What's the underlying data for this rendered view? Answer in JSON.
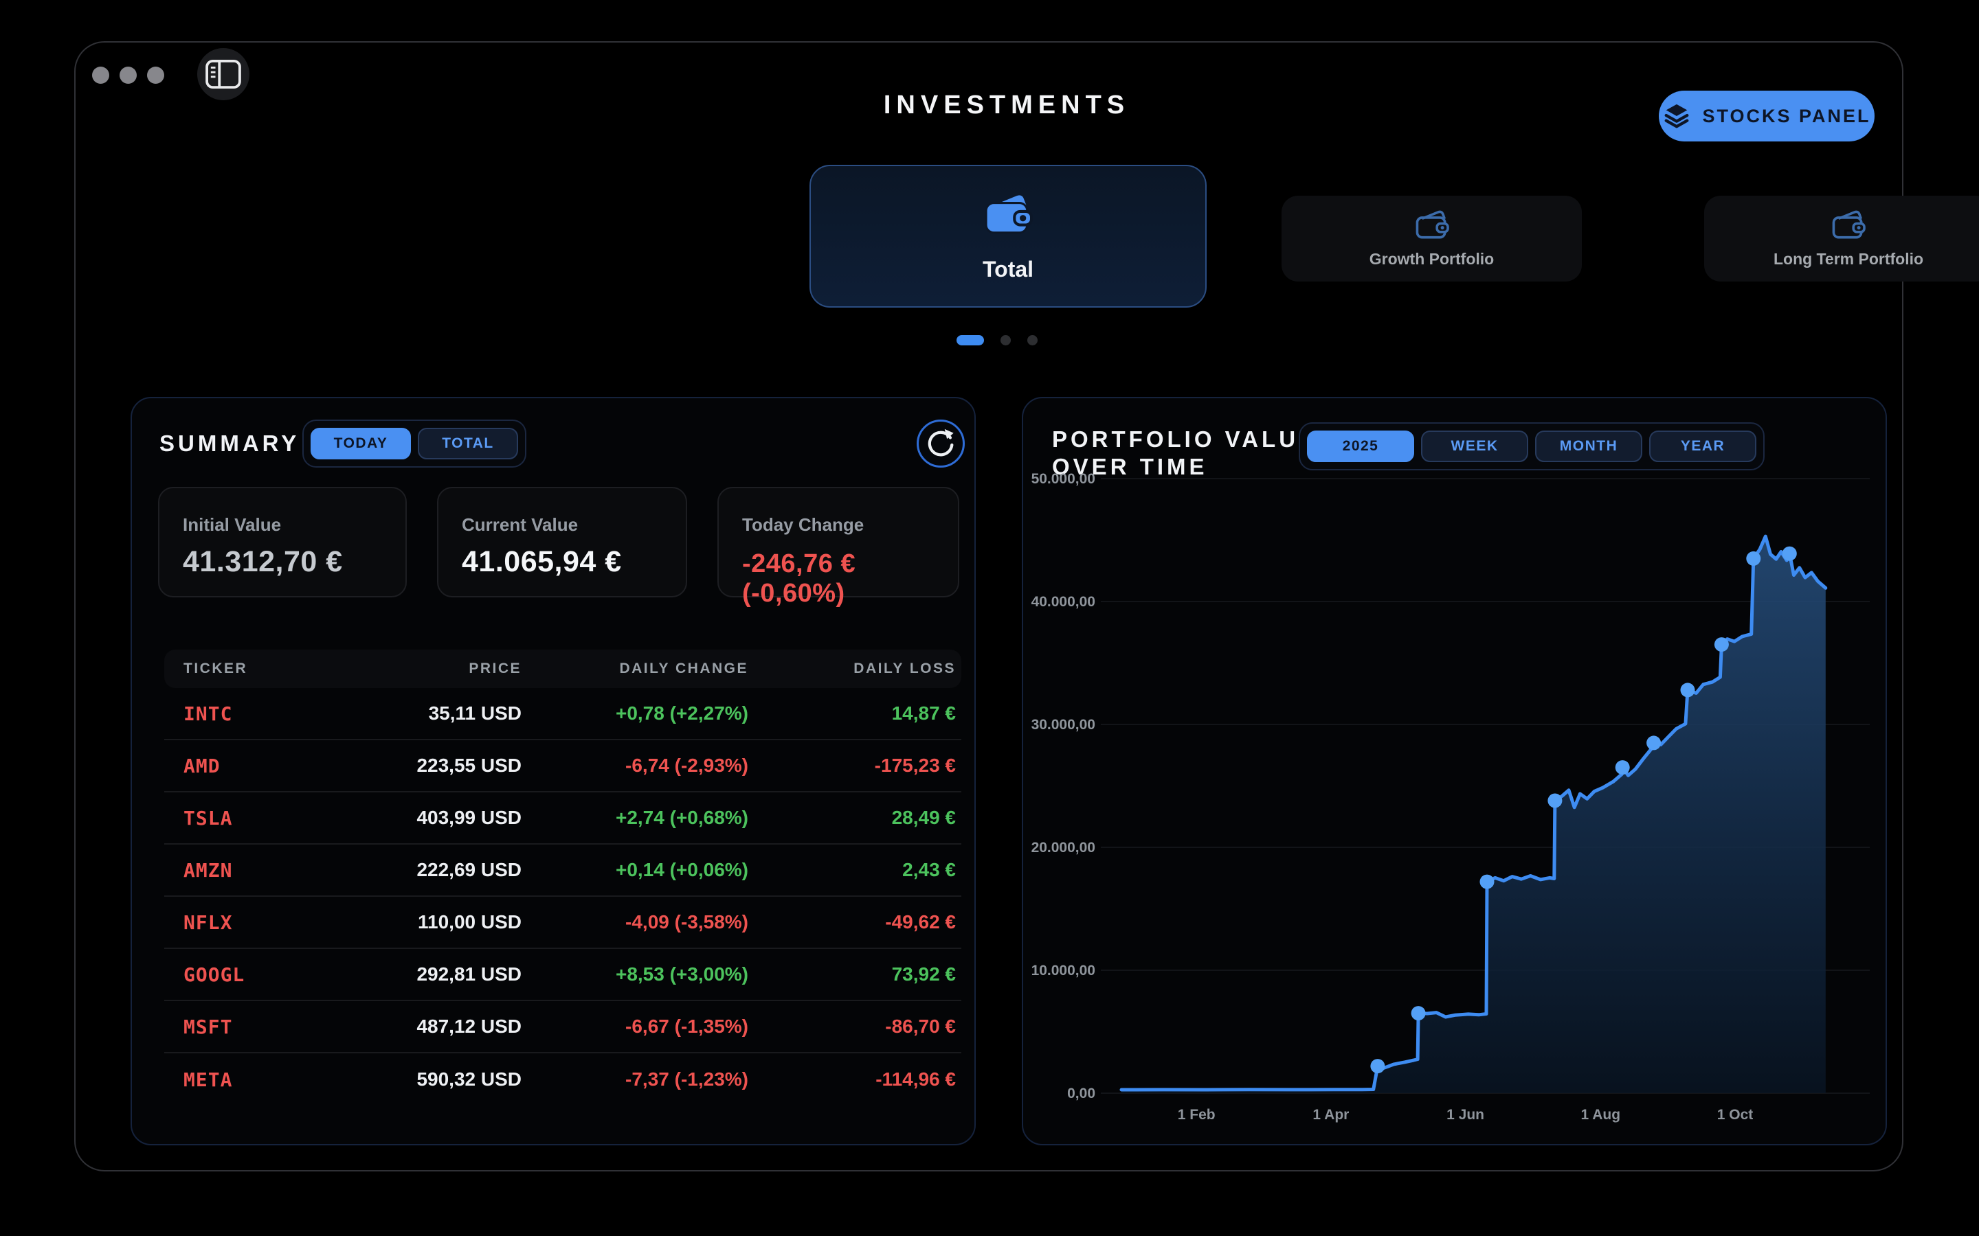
{
  "window": {
    "title": "INVESTMENTS",
    "stocks_panel_label": "STOCKS PANEL"
  },
  "icons": {
    "sidebar": "sidebar-toggle-icon",
    "stocks_panel": "layers-icon",
    "portfolio": "wallet-icon",
    "refresh": "refresh-icon"
  },
  "colors": {
    "accent": "#4a90f2",
    "line": "#3e8cf2",
    "positive": "#4cc35d",
    "negative": "#ef5350",
    "panel_border": "#15223c"
  },
  "portfolios": {
    "selected": {
      "label": "Total"
    },
    "others": [
      {
        "label": "Growth Portfolio"
      },
      {
        "label": "Long Term Portfolio"
      }
    ],
    "pagination": {
      "count": 3,
      "active": 0
    }
  },
  "summary": {
    "title": "SUMMARY",
    "tabs": [
      {
        "label": "TODAY",
        "active": true
      },
      {
        "label": "TOTAL",
        "active": false
      }
    ],
    "cards": [
      {
        "label": "Initial Value",
        "value": "41.312,70 €"
      },
      {
        "label": "Current Value",
        "value": "41.065,94 €"
      },
      {
        "label": "Today Change",
        "value": "-246,76 € (-0,60%)"
      }
    ],
    "table": {
      "headers": [
        "TICKER",
        "PRICE",
        "DAILY CHANGE",
        "DAILY LOSS"
      ],
      "rows": [
        {
          "ticker": "INTC",
          "price": "35,11 USD",
          "change": "+0,78 (+2,27%)",
          "change_dir": "up",
          "loss": "14,87 €",
          "loss_dir": "up"
        },
        {
          "ticker": "AMD",
          "price": "223,55 USD",
          "change": "-6,74 (-2,93%)",
          "change_dir": "down",
          "loss": "-175,23 €",
          "loss_dir": "down"
        },
        {
          "ticker": "TSLA",
          "price": "403,99 USD",
          "change": "+2,74 (+0,68%)",
          "change_dir": "up",
          "loss": "28,49 €",
          "loss_dir": "up"
        },
        {
          "ticker": "AMZN",
          "price": "222,69 USD",
          "change": "+0,14 (+0,06%)",
          "change_dir": "up",
          "loss": "2,43 €",
          "loss_dir": "up"
        },
        {
          "ticker": "NFLX",
          "price": "110,00 USD",
          "change": "-4,09 (-3,58%)",
          "change_dir": "down",
          "loss": "-49,62 €",
          "loss_dir": "down"
        },
        {
          "ticker": "GOOGL",
          "price": "292,81 USD",
          "change": "+8,53 (+3,00%)",
          "change_dir": "up",
          "loss": "73,92 €",
          "loss_dir": "up"
        },
        {
          "ticker": "MSFT",
          "price": "487,12 USD",
          "change": "-6,67 (-1,35%)",
          "change_dir": "down",
          "loss": "-86,70 €",
          "loss_dir": "down"
        },
        {
          "ticker": "META",
          "price": "590,32 USD",
          "change": "-7,37 (-1,23%)",
          "change_dir": "down",
          "loss": "-114,96 €",
          "loss_dir": "down"
        }
      ]
    }
  },
  "chart": {
    "title_line1": "PORTFOLIO VALUE",
    "title_line2": "OVER TIME",
    "tabs": [
      {
        "label": "2025",
        "active": true
      },
      {
        "label": "WEEK",
        "active": false
      },
      {
        "label": "MONTH",
        "active": false
      },
      {
        "label": "YEAR",
        "active": false
      }
    ]
  },
  "chart_data": {
    "type": "line",
    "title": "PORTFOLIO VALUE OVER TIME",
    "xlabel": "",
    "ylabel": "",
    "ylim": [
      0,
      50000
    ],
    "grid": true,
    "legend": false,
    "y_ticks": [
      {
        "label": "50.000,00",
        "value": 50000
      },
      {
        "label": "40.000,00",
        "value": 40000
      },
      {
        "label": "30.000,00",
        "value": 30000
      },
      {
        "label": "20.000,00",
        "value": 20000
      },
      {
        "label": "10.000,00",
        "value": 10000
      },
      {
        "label": "0,00",
        "value": 0
      }
    ],
    "x_ticks": [
      {
        "label": "1 Feb",
        "pos": 0.106
      },
      {
        "label": "1 Apr",
        "pos": 0.296
      },
      {
        "label": "1 Jun",
        "pos": 0.486
      },
      {
        "label": "1 Aug",
        "pos": 0.677
      },
      {
        "label": "1 Oct",
        "pos": 0.867
      }
    ],
    "points": [
      [
        0.0,
        280
      ],
      [
        0.06,
        285
      ],
      [
        0.12,
        280
      ],
      [
        0.18,
        292
      ],
      [
        0.24,
        286
      ],
      [
        0.3,
        292
      ],
      [
        0.34,
        295
      ],
      [
        0.356,
        305
      ],
      [
        0.362,
        2200
      ],
      [
        0.371,
        2050
      ],
      [
        0.385,
        2350
      ],
      [
        0.4,
        2520
      ],
      [
        0.413,
        2680
      ],
      [
        0.4185,
        2760
      ],
      [
        0.4195,
        6500
      ],
      [
        0.432,
        6480
      ],
      [
        0.445,
        6560
      ],
      [
        0.458,
        6200
      ],
      [
        0.472,
        6360
      ],
      [
        0.49,
        6430
      ],
      [
        0.505,
        6380
      ],
      [
        0.5155,
        6450
      ],
      [
        0.5165,
        17200
      ],
      [
        0.528,
        17520
      ],
      [
        0.54,
        17280
      ],
      [
        0.552,
        17620
      ],
      [
        0.565,
        17420
      ],
      [
        0.578,
        17680
      ],
      [
        0.592,
        17380
      ],
      [
        0.605,
        17520
      ],
      [
        0.6115,
        17460
      ],
      [
        0.6125,
        23800
      ],
      [
        0.622,
        24150
      ],
      [
        0.632,
        24650
      ],
      [
        0.64,
        23250
      ],
      [
        0.648,
        24350
      ],
      [
        0.658,
        23950
      ],
      [
        0.668,
        24550
      ],
      [
        0.68,
        24850
      ],
      [
        0.695,
        25350
      ],
      [
        0.707,
        25950
      ],
      [
        0.708,
        26500
      ],
      [
        0.716,
        25850
      ],
      [
        0.726,
        26350
      ],
      [
        0.738,
        27250
      ],
      [
        0.75,
        28100
      ],
      [
        0.752,
        28500
      ],
      [
        0.762,
        28350
      ],
      [
        0.772,
        28950
      ],
      [
        0.784,
        29650
      ],
      [
        0.797,
        30050
      ],
      [
        0.8,
        32800
      ],
      [
        0.812,
        32550
      ],
      [
        0.822,
        33250
      ],
      [
        0.835,
        33450
      ],
      [
        0.846,
        33850
      ],
      [
        0.848,
        36500
      ],
      [
        0.856,
        36950
      ],
      [
        0.866,
        36750
      ],
      [
        0.877,
        37150
      ],
      [
        0.89,
        37350
      ],
      [
        0.893,
        43500
      ],
      [
        0.902,
        44250
      ],
      [
        0.91,
        45300
      ],
      [
        0.917,
        43850
      ],
      [
        0.925,
        43450
      ],
      [
        0.932,
        44050
      ],
      [
        0.94,
        43350
      ],
      [
        0.944,
        43900
      ],
      [
        0.95,
        42150
      ],
      [
        0.958,
        42750
      ],
      [
        0.966,
        41950
      ],
      [
        0.975,
        42350
      ],
      [
        0.984,
        41650
      ],
      [
        0.995,
        41100
      ]
    ],
    "markers": [
      [
        0.362,
        2200
      ],
      [
        0.4195,
        6500
      ],
      [
        0.5165,
        17200
      ],
      [
        0.6125,
        23800
      ],
      [
        0.708,
        26500
      ],
      [
        0.752,
        28500
      ],
      [
        0.8,
        32800
      ],
      [
        0.848,
        36500
      ],
      [
        0.893,
        43500
      ],
      [
        0.944,
        43900
      ]
    ]
  }
}
